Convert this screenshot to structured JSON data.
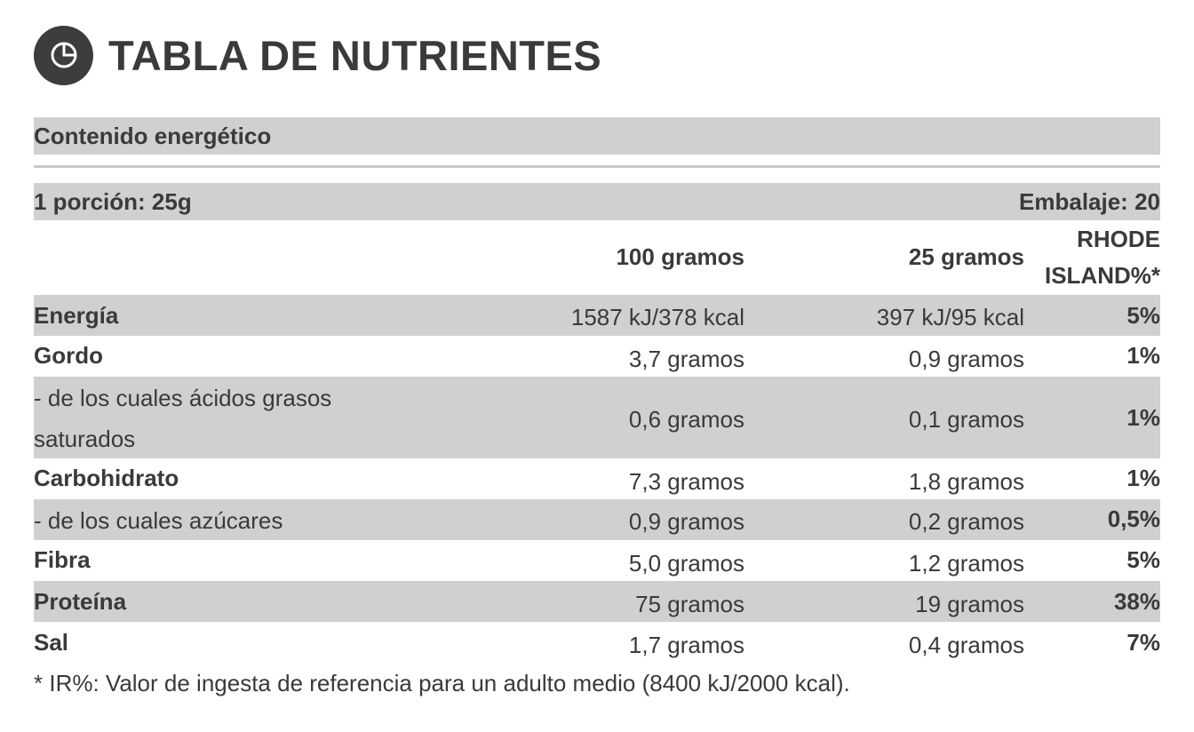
{
  "header": {
    "icon": "pie-chart-icon",
    "title": "TABLA DE NUTRIENTES"
  },
  "energy_section": {
    "label": "Contenido energético"
  },
  "portion": {
    "serving": "1 porción: 25g",
    "package": "Embalaje: 20"
  },
  "columns": {
    "per100": "100 gramos",
    "per25": "25 gramos",
    "ir_line1": "RHODE",
    "ir_line2": "ISLAND%*"
  },
  "rows": [
    {
      "name": "Energía",
      "per100": "1587 kJ/378 kcal",
      "per25": "397 kJ/95 kcal",
      "ir": "5%"
    },
    {
      "name": "Gordo",
      "per100": "3,7 gramos",
      "per25": "0,9 gramos",
      "ir": "1%"
    },
    {
      "name_line1": "- de los cuales ácidos grasos",
      "name_line2": "saturados",
      "per100": "0,6 gramos",
      "per25": "0,1 gramos",
      "ir": "1%"
    },
    {
      "name": "Carbohidrato",
      "per100": "7,3 gramos",
      "per25": "1,8 gramos",
      "ir": "1%"
    },
    {
      "name": "- de los cuales azúcares",
      "per100": "0,9 gramos",
      "per25": "0,2 gramos",
      "ir": "0,5%"
    },
    {
      "name": "Fibra",
      "per100": "5,0 gramos",
      "per25": "1,2 gramos",
      "ir": "5%"
    },
    {
      "name": "Proteína",
      "per100": "75 gramos",
      "per25": "19 gramos",
      "ir": "38%"
    },
    {
      "name": "Sal",
      "per100": "1,7 gramos",
      "per25": "0,4 gramos",
      "ir": "7%"
    }
  ],
  "footnote": "* IR%: Valor de ingesta de referencia para un adulto medio (8400 kJ/2000 kcal).",
  "colors": {
    "row_shade": "#d0d0d0",
    "text": "#3a3a3a",
    "icon_bg": "#3d3d3d"
  }
}
